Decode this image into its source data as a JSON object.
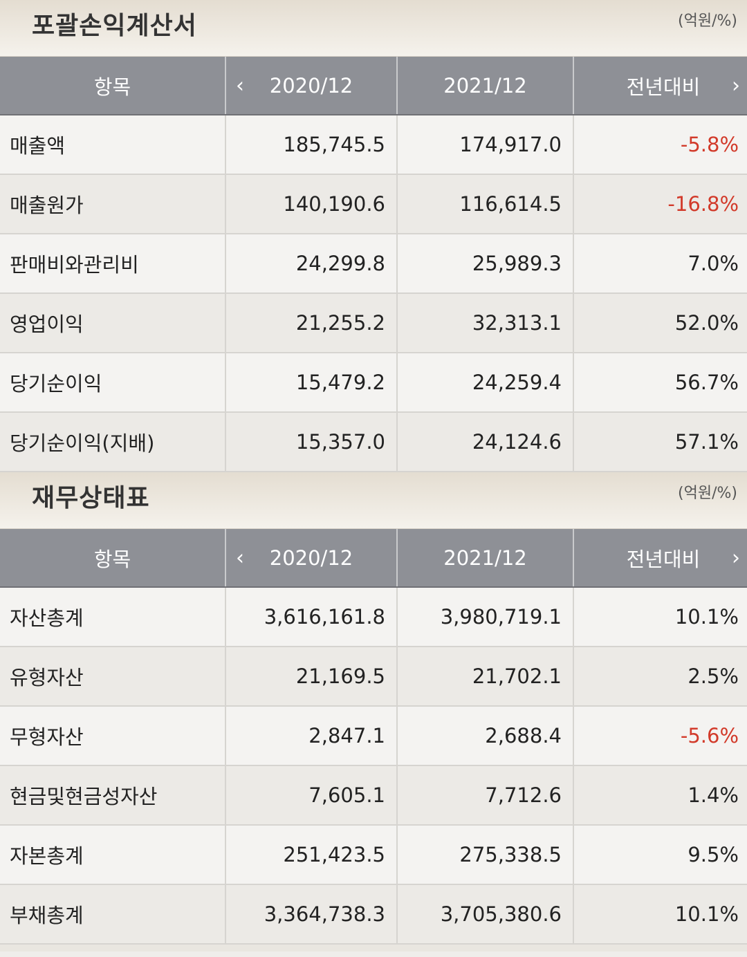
{
  "income": {
    "title": "포괄손익계산서",
    "unit": "(억원/%)",
    "headers": {
      "item": "항목",
      "col1": "2020/12",
      "col2": "2021/12",
      "col3": "전년대비"
    },
    "rows": [
      {
        "item": "매출액",
        "v1": "185,745.5",
        "v2": "174,917.0",
        "yoy": "-5.8%",
        "neg": true
      },
      {
        "item": "매출원가",
        "v1": "140,190.6",
        "v2": "116,614.5",
        "yoy": "-16.8%",
        "neg": true
      },
      {
        "item": "판매비와관리비",
        "v1": "24,299.8",
        "v2": "25,989.3",
        "yoy": "7.0%",
        "neg": false
      },
      {
        "item": "영업이익",
        "v1": "21,255.2",
        "v2": "32,313.1",
        "yoy": "52.0%",
        "neg": false
      },
      {
        "item": "당기순이익",
        "v1": "15,479.2",
        "v2": "24,259.4",
        "yoy": "56.7%",
        "neg": false
      },
      {
        "item": "당기순이익(지배)",
        "v1": "15,357.0",
        "v2": "24,124.6",
        "yoy": "57.1%",
        "neg": false
      }
    ]
  },
  "balance": {
    "title": "재무상태표",
    "unit": "(억원/%)",
    "headers": {
      "item": "항목",
      "col1": "2020/12",
      "col2": "2021/12",
      "col3": "전년대비"
    },
    "rows": [
      {
        "item": "자산총계",
        "v1": "3,616,161.8",
        "v2": "3,980,719.1",
        "yoy": "10.1%",
        "neg": false
      },
      {
        "item": "유형자산",
        "v1": "21,169.5",
        "v2": "21,702.1",
        "yoy": "2.5%",
        "neg": false
      },
      {
        "item": "무형자산",
        "v1": "2,847.1",
        "v2": "2,688.4",
        "yoy": "-5.6%",
        "neg": true
      },
      {
        "item": "현금및현금성자산",
        "v1": "7,605.1",
        "v2": "7,712.6",
        "yoy": "1.4%",
        "neg": false
      },
      {
        "item": "자본총계",
        "v1": "251,423.5",
        "v2": "275,338.5",
        "yoy": "9.5%",
        "neg": false
      },
      {
        "item": "부채총계",
        "v1": "3,364,738.3",
        "v2": "3,705,380.6",
        "yoy": "10.1%",
        "neg": false
      }
    ]
  },
  "icons": {
    "prev": "chevron-left-icon",
    "next": "chevron-right-icon"
  },
  "colors": {
    "negative": "#d23a2a",
    "header_bg": "#8e9096"
  }
}
